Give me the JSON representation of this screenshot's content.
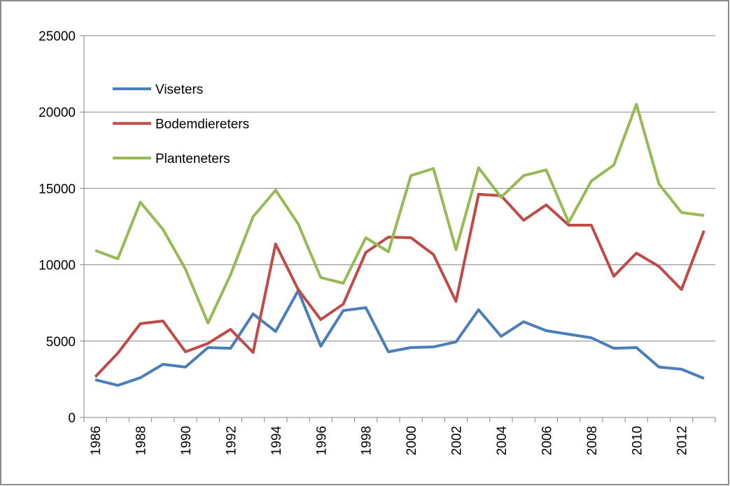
{
  "chart_data": {
    "type": "line",
    "categories": [
      "1986",
      null,
      "1988",
      null,
      "1990",
      null,
      "1992",
      null,
      "1994",
      null,
      "1996",
      null,
      "1998",
      null,
      "2000",
      null,
      "2002",
      null,
      "2004",
      null,
      "2006",
      null,
      "2008",
      null,
      "2010",
      null,
      "2012",
      null
    ],
    "series": [
      {
        "name": "Viseters",
        "color": "#4a7ebb",
        "values": [
          2470,
          2100,
          2600,
          3480,
          3300,
          4580,
          4530,
          6780,
          5630,
          8300,
          4670,
          7000,
          7190,
          4300,
          4580,
          4620,
          4950,
          7050,
          5310,
          6270,
          5680,
          5450,
          5220,
          4530,
          4580,
          3300,
          3160,
          2560
        ]
      },
      {
        "name": "Bodemdiereters",
        "color": "#be4b48",
        "values": [
          2660,
          4210,
          6140,
          6320,
          4300,
          4850,
          5770,
          4260,
          11360,
          8380,
          6410,
          7420,
          10810,
          11810,
          11770,
          10670,
          7600,
          14610,
          14520,
          12910,
          13920,
          12590,
          12590,
          9250,
          10760,
          9890,
          8380,
          12230
        ]
      },
      {
        "name": "Planteneters",
        "color": "#98b954",
        "values": [
          10940,
          10390,
          14100,
          12320,
          9710,
          6180,
          9340,
          13140,
          14880,
          12680,
          9160,
          8790,
          11770,
          10850,
          15840,
          16300,
          10990,
          16350,
          14420,
          15840,
          16210,
          12780,
          15480,
          16530,
          20510,
          15290,
          13420,
          13230
        ]
      }
    ],
    "ylim": [
      0,
      25000
    ],
    "yticks": [
      0,
      5000,
      10000,
      15000,
      20000,
      25000
    ],
    "grid": true,
    "legend": "upper left"
  }
}
